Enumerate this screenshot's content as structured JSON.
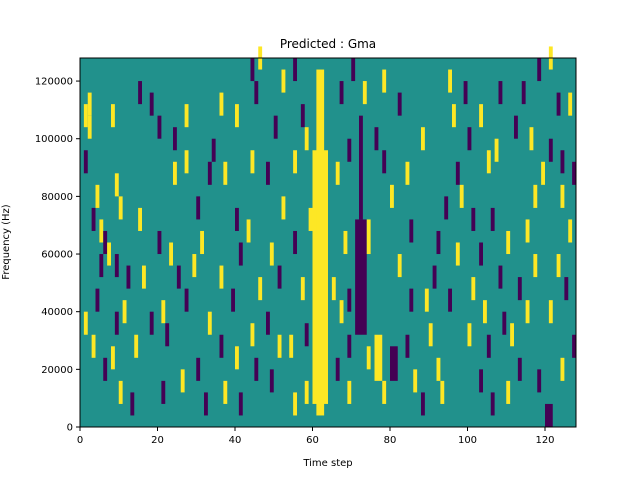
{
  "chart_data": {
    "type": "heatmap",
    "title": "Predicted : Gma",
    "xlabel": "Time step",
    "ylabel": "Frequency (Hz)",
    "xlim": [
      0,
      128
    ],
    "ylim": [
      0,
      128000
    ],
    "xticks": [
      0,
      20,
      40,
      60,
      80,
      100,
      120
    ],
    "xtick_labels": [
      "0",
      "20",
      "40",
      "60",
      "80",
      "100",
      "120"
    ],
    "yticks": [
      0,
      20000,
      40000,
      60000,
      80000,
      100000,
      120000
    ],
    "ytick_labels": [
      "0",
      "20000",
      "40000",
      "60000",
      "80000",
      "100000",
      "120000"
    ],
    "grid": false,
    "colormap": "viridis",
    "colors": {
      "background": "#21918c",
      "high": "#fde725",
      "low": "#440154",
      "mid_low": "#3b528b"
    },
    "value_levels": {
      "low": 0.0,
      "background": 0.5,
      "high": 1.0
    },
    "bin_size": {
      "time_steps": 1,
      "frequency_hz": 4000
    },
    "dense_regions": [
      {
        "level": "high",
        "time": [
          60,
          64
        ],
        "freq": [
          8000,
          96000
        ]
      },
      {
        "level": "high",
        "time": [
          61,
          63
        ],
        "freq": [
          4000,
          124000
        ]
      },
      {
        "level": "low",
        "time": [
          71,
          74
        ],
        "freq": [
          32000,
          72000
        ]
      },
      {
        "level": "low",
        "time": [
          72,
          73
        ],
        "freq": [
          72000,
          108000
        ]
      },
      {
        "level": "high",
        "time": [
          74,
          75
        ],
        "freq": [
          60000,
          72000
        ]
      },
      {
        "level": "low",
        "time": [
          80,
          82
        ],
        "freq": [
          16000,
          28000
        ]
      },
      {
        "level": "high",
        "time": [
          76,
          78
        ],
        "freq": [
          16000,
          32000
        ]
      },
      {
        "level": "low",
        "time": [
          120,
          122
        ],
        "freq": [
          0,
          8000
        ]
      },
      {
        "level": "low",
        "time": [
          127,
          128
        ],
        "freq": [
          84000,
          92000
        ]
      }
    ],
    "cells": [
      {
        "t": 2,
        "f": 108000,
        "v": "high"
      },
      {
        "t": 1,
        "f": 104000,
        "v": "high"
      },
      {
        "t": 2,
        "f": 100000,
        "v": "high"
      },
      {
        "t": 8,
        "f": 104000,
        "v": "high"
      },
      {
        "t": 1,
        "f": 88000,
        "v": "low"
      },
      {
        "t": 4,
        "f": 76000,
        "v": "high"
      },
      {
        "t": 9,
        "f": 80000,
        "v": "high"
      },
      {
        "t": 10,
        "f": 72000,
        "v": "high"
      },
      {
        "t": 3,
        "f": 68000,
        "v": "low"
      },
      {
        "t": 5,
        "f": 64000,
        "v": "high"
      },
      {
        "t": 6,
        "f": 60000,
        "v": "low"
      },
      {
        "t": 5,
        "f": 52000,
        "v": "low"
      },
      {
        "t": 7,
        "f": 56000,
        "v": "high"
      },
      {
        "t": 9,
        "f": 52000,
        "v": "low"
      },
      {
        "t": 12,
        "f": 48000,
        "v": "low"
      },
      {
        "t": 11,
        "f": 36000,
        "v": "high"
      },
      {
        "t": 9,
        "f": 32000,
        "v": "low"
      },
      {
        "t": 4,
        "f": 40000,
        "v": "low"
      },
      {
        "t": 1,
        "f": 32000,
        "v": "high"
      },
      {
        "t": 3,
        "f": 24000,
        "v": "high"
      },
      {
        "t": 6,
        "f": 16000,
        "v": "low"
      },
      {
        "t": 8,
        "f": 20000,
        "v": "high"
      },
      {
        "t": 10,
        "f": 8000,
        "v": "high"
      },
      {
        "t": 13,
        "f": 4000,
        "v": "low"
      },
      {
        "t": 16,
        "f": 48000,
        "v": "high"
      },
      {
        "t": 18,
        "f": 32000,
        "v": "low"
      },
      {
        "t": 21,
        "f": 36000,
        "v": "high"
      },
      {
        "t": 22,
        "f": 28000,
        "v": "low"
      },
      {
        "t": 23,
        "f": 56000,
        "v": "high"
      },
      {
        "t": 20,
        "f": 60000,
        "v": "low"
      },
      {
        "t": 25,
        "f": 48000,
        "v": "low"
      },
      {
        "t": 27,
        "f": 40000,
        "v": "low"
      },
      {
        "t": 29,
        "f": 52000,
        "v": "high"
      },
      {
        "t": 33,
        "f": 32000,
        "v": "high"
      },
      {
        "t": 30,
        "f": 16000,
        "v": "low"
      },
      {
        "t": 26,
        "f": 12000,
        "v": "high"
      },
      {
        "t": 21,
        "f": 8000,
        "v": "low"
      },
      {
        "t": 32,
        "f": 4000,
        "v": "low"
      },
      {
        "t": 37,
        "f": 8000,
        "v": "high"
      },
      {
        "t": 41,
        "f": 4000,
        "v": "low"
      },
      {
        "t": 36,
        "f": 24000,
        "v": "low"
      },
      {
        "t": 40,
        "f": 20000,
        "v": "high"
      },
      {
        "t": 36,
        "f": 48000,
        "v": "high"
      },
      {
        "t": 39,
        "f": 40000,
        "v": "low"
      },
      {
        "t": 41,
        "f": 56000,
        "v": "low"
      },
      {
        "t": 43,
        "f": 64000,
        "v": "high"
      },
      {
        "t": 40,
        "f": 68000,
        "v": "low"
      },
      {
        "t": 37,
        "f": 84000,
        "v": "high"
      },
      {
        "t": 40,
        "f": 104000,
        "v": "high"
      },
      {
        "t": 36,
        "f": 108000,
        "v": "high"
      },
      {
        "t": 27,
        "f": 104000,
        "v": "high"
      },
      {
        "t": 24,
        "f": 96000,
        "v": "low"
      },
      {
        "t": 20,
        "f": 100000,
        "v": "low"
      },
      {
        "t": 18,
        "f": 108000,
        "v": "low"
      },
      {
        "t": 27,
        "f": 88000,
        "v": "high"
      },
      {
        "t": 24,
        "f": 84000,
        "v": "high"
      },
      {
        "t": 33,
        "f": 84000,
        "v": "low"
      },
      {
        "t": 44,
        "f": 88000,
        "v": "high"
      },
      {
        "t": 48,
        "f": 84000,
        "v": "low"
      },
      {
        "t": 44,
        "f": 120000,
        "v": "low"
      },
      {
        "t": 46,
        "f": 124000,
        "v": "high"
      },
      {
        "t": 52,
        "f": 116000,
        "v": "high"
      },
      {
        "t": 55,
        "f": 120000,
        "v": "low"
      },
      {
        "t": 57,
        "f": 104000,
        "v": "low"
      },
      {
        "t": 50,
        "f": 100000,
        "v": "low"
      },
      {
        "t": 55,
        "f": 88000,
        "v": "high"
      },
      {
        "t": 52,
        "f": 72000,
        "v": "high"
      },
      {
        "t": 55,
        "f": 60000,
        "v": "low"
      },
      {
        "t": 49,
        "f": 56000,
        "v": "high"
      },
      {
        "t": 51,
        "f": 48000,
        "v": "low"
      },
      {
        "t": 57,
        "f": 44000,
        "v": "high"
      },
      {
        "t": 48,
        "f": 32000,
        "v": "low"
      },
      {
        "t": 54,
        "f": 24000,
        "v": "high"
      },
      {
        "t": 49,
        "f": 12000,
        "v": "low"
      },
      {
        "t": 55,
        "f": 4000,
        "v": "high"
      },
      {
        "t": 58,
        "f": 8000,
        "v": "high"
      },
      {
        "t": 66,
        "f": 16000,
        "v": "low"
      },
      {
        "t": 67,
        "f": 36000,
        "v": "high"
      },
      {
        "t": 69,
        "f": 24000,
        "v": "low"
      },
      {
        "t": 68,
        "f": 60000,
        "v": "high"
      },
      {
        "t": 66,
        "f": 84000,
        "v": "high"
      },
      {
        "t": 69,
        "f": 92000,
        "v": "low"
      },
      {
        "t": 67,
        "f": 112000,
        "v": "low"
      },
      {
        "t": 70,
        "f": 120000,
        "v": "low"
      },
      {
        "t": 76,
        "f": 96000,
        "v": "low"
      },
      {
        "t": 78,
        "f": 88000,
        "v": "low"
      },
      {
        "t": 80,
        "f": 76000,
        "v": "high"
      },
      {
        "t": 84,
        "f": 84000,
        "v": "high"
      },
      {
        "t": 85,
        "f": 64000,
        "v": "low"
      },
      {
        "t": 82,
        "f": 52000,
        "v": "high"
      },
      {
        "t": 85,
        "f": 40000,
        "v": "low"
      },
      {
        "t": 84,
        "f": 24000,
        "v": "low"
      },
      {
        "t": 86,
        "f": 12000,
        "v": "high"
      },
      {
        "t": 88,
        "f": 4000,
        "v": "low"
      },
      {
        "t": 90,
        "f": 28000,
        "v": "high"
      },
      {
        "t": 92,
        "f": 16000,
        "v": "high"
      },
      {
        "t": 93,
        "f": 8000,
        "v": "high"
      },
      {
        "t": 95,
        "f": 40000,
        "v": "low"
      },
      {
        "t": 97,
        "f": 56000,
        "v": "high"
      },
      {
        "t": 92,
        "f": 60000,
        "v": "low"
      },
      {
        "t": 94,
        "f": 72000,
        "v": "low"
      },
      {
        "t": 97,
        "f": 84000,
        "v": "low"
      },
      {
        "t": 96,
        "f": 104000,
        "v": "high"
      },
      {
        "t": 99,
        "f": 112000,
        "v": "low"
      },
      {
        "t": 95,
        "f": 116000,
        "v": "high"
      },
      {
        "t": 103,
        "f": 104000,
        "v": "high"
      },
      {
        "t": 100,
        "f": 96000,
        "v": "low"
      },
      {
        "t": 105,
        "f": 88000,
        "v": "high"
      },
      {
        "t": 101,
        "f": 68000,
        "v": "low"
      },
      {
        "t": 103,
        "f": 56000,
        "v": "low"
      },
      {
        "t": 101,
        "f": 44000,
        "v": "high"
      },
      {
        "t": 104,
        "f": 36000,
        "v": "high"
      },
      {
        "t": 100,
        "f": 28000,
        "v": "high"
      },
      {
        "t": 105,
        "f": 24000,
        "v": "low"
      },
      {
        "t": 103,
        "f": 12000,
        "v": "low"
      },
      {
        "t": 106,
        "f": 4000,
        "v": "low"
      },
      {
        "t": 110,
        "f": 8000,
        "v": "high"
      },
      {
        "t": 113,
        "f": 16000,
        "v": "low"
      },
      {
        "t": 111,
        "f": 28000,
        "v": "high"
      },
      {
        "t": 115,
        "f": 36000,
        "v": "high"
      },
      {
        "t": 113,
        "f": 44000,
        "v": "low"
      },
      {
        "t": 117,
        "f": 52000,
        "v": "high"
      },
      {
        "t": 115,
        "f": 64000,
        "v": "high"
      },
      {
        "t": 117,
        "f": 76000,
        "v": "high"
      },
      {
        "t": 119,
        "f": 84000,
        "v": "high"
      },
      {
        "t": 116,
        "f": 96000,
        "v": "high"
      },
      {
        "t": 114,
        "f": 112000,
        "v": "low"
      },
      {
        "t": 118,
        "f": 120000,
        "v": "low"
      },
      {
        "t": 121,
        "f": 124000,
        "v": "high"
      },
      {
        "t": 123,
        "f": 108000,
        "v": "low"
      },
      {
        "t": 121,
        "f": 92000,
        "v": "low"
      },
      {
        "t": 124,
        "f": 76000,
        "v": "high"
      },
      {
        "t": 126,
        "f": 64000,
        "v": "high"
      },
      {
        "t": 123,
        "f": 52000,
        "v": "high"
      },
      {
        "t": 125,
        "f": 44000,
        "v": "low"
      },
      {
        "t": 121,
        "f": 36000,
        "v": "high"
      },
      {
        "t": 127,
        "f": 24000,
        "v": "low"
      },
      {
        "t": 124,
        "f": 16000,
        "v": "high"
      },
      {
        "t": 118,
        "f": 12000,
        "v": "low"
      },
      {
        "t": 126,
        "f": 108000,
        "v": "high"
      },
      {
        "t": 108,
        "f": 112000,
        "v": "low"
      },
      {
        "t": 110,
        "f": 60000,
        "v": "high"
      },
      {
        "t": 108,
        "f": 48000,
        "v": "low"
      },
      {
        "t": 89,
        "f": 40000,
        "v": "high"
      },
      {
        "t": 88,
        "f": 96000,
        "v": "high"
      },
      {
        "t": 82,
        "f": 108000,
        "v": "low"
      },
      {
        "t": 78,
        "f": 116000,
        "v": "high"
      },
      {
        "t": 73,
        "f": 112000,
        "v": "high"
      },
      {
        "t": 69,
        "f": 40000,
        "v": "low"
      },
      {
        "t": 65,
        "f": 44000,
        "v": "high"
      },
      {
        "t": 58,
        "f": 28000,
        "v": "low"
      },
      {
        "t": 59,
        "f": 68000,
        "v": "high"
      },
      {
        "t": 58,
        "f": 96000,
        "v": "high"
      },
      {
        "t": 44,
        "f": 28000,
        "v": "high"
      },
      {
        "t": 45,
        "f": 16000,
        "v": "low"
      },
      {
        "t": 46,
        "f": 44000,
        "v": "high"
      },
      {
        "t": 14,
        "f": 24000,
        "v": "high"
      },
      {
        "t": 15,
        "f": 112000,
        "v": "low"
      },
      {
        "t": 30,
        "f": 72000,
        "v": "low"
      },
      {
        "t": 31,
        "f": 60000,
        "v": "high"
      },
      {
        "t": 34,
        "f": 92000,
        "v": "low"
      },
      {
        "t": 15,
        "f": 68000,
        "v": "high"
      },
      {
        "t": 45,
        "f": 112000,
        "v": "low"
      },
      {
        "t": 51,
        "f": 24000,
        "v": "high"
      },
      {
        "t": 78,
        "f": 8000,
        "v": "high"
      },
      {
        "t": 74,
        "f": 20000,
        "v": "high"
      },
      {
        "t": 69,
        "f": 8000,
        "v": "high"
      },
      {
        "t": 91,
        "f": 48000,
        "v": "low"
      },
      {
        "t": 98,
        "f": 76000,
        "v": "high"
      },
      {
        "t": 107,
        "f": 92000,
        "v": "high"
      },
      {
        "t": 112,
        "f": 100000,
        "v": "low"
      },
      {
        "t": 124,
        "f": 88000,
        "v": "low"
      },
      {
        "t": 106,
        "f": 68000,
        "v": "low"
      },
      {
        "t": 109,
        "f": 32000,
        "v": "low"
      }
    ]
  }
}
